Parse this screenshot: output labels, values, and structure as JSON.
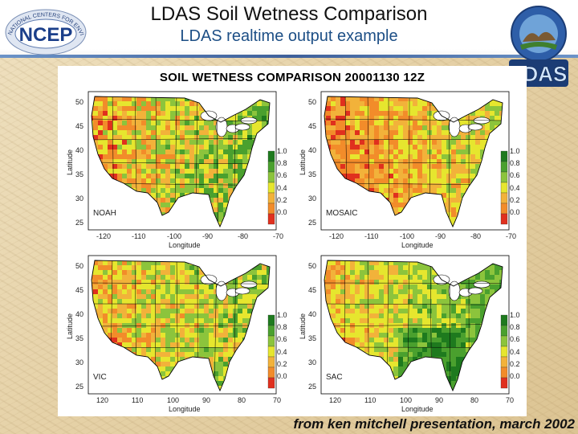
{
  "header": {
    "title": "LDAS Soil Wetness Comparison",
    "subtitle": "LDAS realtime output example"
  },
  "logos": {
    "ncep": {
      "text": "NCEP",
      "ring_text": "NATIONAL CENTERS FOR ENVIRONMENTAL PREDICTION",
      "icon": "ncep-logo-icon"
    },
    "ldas": {
      "text": "LDAS",
      "icon": "ldas-logo-icon"
    }
  },
  "figure": {
    "title": "SOIL WETNESS COMPARISON 20001130 12Z",
    "panels": [
      {
        "model": "NOAH",
        "ylabel": "Latitude",
        "xlabel": "Longitude",
        "xticks": [
          "-120",
          "-110",
          "-100",
          "-90",
          "-80",
          "-70"
        ],
        "yticks": [
          "50",
          "45",
          "40",
          "35",
          "30",
          "25"
        ],
        "colorbar": [
          "1.0",
          "0.8",
          "0.6",
          "0.4",
          "0.2",
          "0.0"
        ],
        "dominant": "mixed"
      },
      {
        "model": "MOSAIC",
        "ylabel": "Latitude",
        "xlabel": "Longitude",
        "xticks": [
          "-120",
          "-110",
          "-100",
          "-90",
          "-80",
          "-70"
        ],
        "yticks": [
          "50",
          "45",
          "40",
          "35",
          "30",
          "25"
        ],
        "colorbar": [
          "1.0",
          "0.8",
          "0.6",
          "0.4",
          "0.2",
          "0.0"
        ],
        "dominant": "dry"
      },
      {
        "model": "VIC",
        "ylabel": "Latitude",
        "xlabel": "Longitude",
        "xticks": [
          "120",
          "110",
          "100",
          "90",
          "80",
          "70"
        ],
        "yticks": [
          "50",
          "45",
          "40",
          "35",
          "30",
          "25"
        ],
        "colorbar": [
          "1.0",
          "0.8",
          "0.6",
          "0.4",
          "0.2",
          "0.0"
        ],
        "dominant": "moderate"
      },
      {
        "model": "SAC",
        "ylabel": "Latitude",
        "xlabel": "Longitude",
        "xticks": [
          "120",
          "110",
          "100",
          "90",
          "80",
          "70"
        ],
        "yticks": [
          "50",
          "45",
          "40",
          "35",
          "30",
          "25"
        ],
        "colorbar": [
          "1.0",
          "0.8",
          "0.6",
          "0.4",
          "0.2",
          "0.0"
        ],
        "dominant": "wet"
      }
    ],
    "colors": {
      "wet_dark": "#1e7a1e",
      "wet": "#4aa02e",
      "moist": "#8cc43c",
      "mid": "#e6e62e",
      "dryish": "#f2b23a",
      "dry": "#f28c2a",
      "very_dry": "#e0301e",
      "lakes": "#ffffff"
    }
  },
  "footer": {
    "credit": "from ken mitchell presentation, march 2002"
  }
}
